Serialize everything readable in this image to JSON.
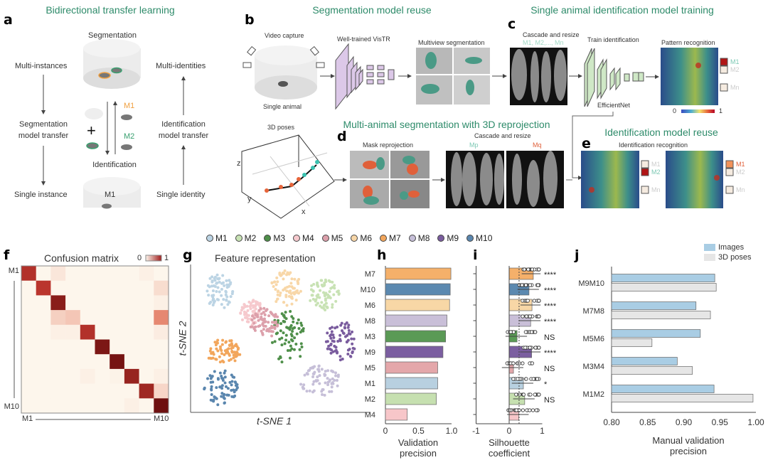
{
  "panel_a": {
    "letter": "a",
    "title": "Bidirectional transfer learning",
    "segmentation": "Segmentation",
    "multi_instances": "Multi-instances",
    "multi_identities": "Multi-identities",
    "seg_transfer_1": "Segmentation",
    "seg_transfer_2": "model transfer",
    "id_transfer_1": "Identification",
    "id_transfer_2": "model transfer",
    "m1": "M1",
    "m2": "M2",
    "plus": "+",
    "identification": "Identification",
    "single_instance": "Single instance",
    "single_identity": "Single identity",
    "m1_bottom": "M1"
  },
  "panel_b": {
    "letter": "b",
    "title": "Segmentation model reuse",
    "video_capture": "Video capture",
    "single_animal": "Single animal",
    "vistr": "Well-trained VisTR",
    "multiview": "Multiview segmentation",
    "poses": "3D poses",
    "axis_x": "x",
    "axis_y": "y",
    "axis_z": "z"
  },
  "panel_c": {
    "letter": "c",
    "title": "Single animal identification model training",
    "cascade": "Cascade and resize",
    "ids": "M1, M2,..., Mn",
    "train": "Train identification",
    "efficientnet": "EfficientNet",
    "pattern": "Pattern recognition",
    "labels": [
      "M1",
      "M2",
      "Mn"
    ],
    "scale_min": "0",
    "scale_max": "1"
  },
  "panel_d": {
    "letter": "d",
    "title": "Multi-animal segmentation with 3D reprojection",
    "mask": "Mask reprojection",
    "cascade": "Cascade and resize",
    "mp": "Mp",
    "mq": "Mq"
  },
  "panel_e": {
    "letter": "e",
    "title": "Identification model reuse",
    "recognition": "Identification recognition",
    "left_labels": [
      "M1",
      "M2",
      "Mn"
    ],
    "right_labels": [
      "M1",
      "M2",
      "Mn"
    ]
  },
  "legend": [
    {
      "label": "M1",
      "color": "#bcd4e4"
    },
    {
      "label": "M2",
      "color": "#c8e2b4"
    },
    {
      "label": "M3",
      "color": "#4f8f4a"
    },
    {
      "label": "M4",
      "color": "#f6c9cd"
    },
    {
      "label": "M5",
      "color": "#dca0ab"
    },
    {
      "label": "M6",
      "color": "#f8d7a8"
    },
    {
      "label": "M7",
      "color": "#f2a65c"
    },
    {
      "label": "M8",
      "color": "#c6bfd8"
    },
    {
      "label": "M9",
      "color": "#7a5c9e"
    },
    {
      "label": "M10",
      "color": "#5a86ae"
    }
  ],
  "panel_g": {
    "letter": "g",
    "title": "Feature representation",
    "xlabel": "t-SNE 1",
    "ylabel": "t-SNE 2"
  },
  "chart_data": [
    {
      "id": "f",
      "type": "heatmap",
      "title": "Confusion matrix",
      "scale_min": "0",
      "scale_max": "1",
      "row_label_first": "M1",
      "row_label_last": "M10",
      "col_label_first": "M1",
      "col_label_last": "M10",
      "matrix": [
        [
          0.75,
          0,
          0.05,
          0,
          0,
          0,
          0,
          0,
          0.02,
          0
        ],
        [
          0,
          0.72,
          0,
          0,
          0,
          0,
          0,
          0,
          0,
          0.08
        ],
        [
          0,
          0,
          0.9,
          0,
          0,
          0,
          0,
          0,
          0,
          0.02
        ],
        [
          0,
          0,
          0.12,
          0.15,
          0,
          0,
          0,
          0,
          0,
          0.35
        ],
        [
          0,
          0,
          0.02,
          0.02,
          0.75,
          0,
          0,
          0,
          0,
          0.03
        ],
        [
          0,
          0,
          0,
          0,
          0,
          0.95,
          0,
          0,
          0,
          0
        ],
        [
          0,
          0,
          0,
          0,
          0,
          0,
          0.97,
          0,
          0,
          0
        ],
        [
          0,
          0,
          0,
          0,
          0.02,
          0,
          0.01,
          0.85,
          0,
          0.02
        ],
        [
          0,
          0,
          0,
          0,
          0,
          0,
          0,
          0,
          0.82,
          0.1
        ],
        [
          0,
          0,
          0,
          0,
          0,
          0,
          0,
          0.02,
          0,
          1.0
        ]
      ]
    },
    {
      "id": "h",
      "type": "bar",
      "xlabel_1": "Validation",
      "xlabel_2": "precision",
      "xlim": [
        0,
        1
      ],
      "xticks": [
        "0",
        "0.5",
        "1.0"
      ],
      "categories": [
        "M7",
        "M10",
        "M6",
        "M8",
        "M3",
        "M9",
        "M5",
        "M1",
        "M2",
        "M4"
      ],
      "values": [
        0.99,
        0.98,
        0.97,
        0.93,
        0.91,
        0.87,
        0.79,
        0.79,
        0.77,
        0.33
      ],
      "colors": [
        "#f5b06a",
        "#5b89b0",
        "#f8d7a6",
        "#c9bfd8",
        "#5a9a55",
        "#7b5ea0",
        "#e4a7aa",
        "#b8d0e0",
        "#c6e0b0",
        "#f7c6c9"
      ]
    },
    {
      "id": "i",
      "type": "bar",
      "xlabel_1": "Silhouette",
      "xlabel_2": "coefficient",
      "xlim": [
        -1,
        1
      ],
      "xticks": [
        "-1",
        "0",
        "1"
      ],
      "reference_line": 0.3,
      "categories": [
        "M7",
        "M10",
        "M6",
        "M8",
        "M3",
        "M9",
        "M5",
        "M1",
        "M2",
        "M4"
      ],
      "values": [
        0.73,
        0.6,
        0.69,
        0.65,
        0.24,
        0.68,
        0.13,
        0.43,
        0.47,
        0.29
      ],
      "significance": [
        "****",
        "****",
        "****",
        "****",
        "NS",
        "****",
        "NS",
        "*",
        "NS",
        ""
      ]
    },
    {
      "id": "j",
      "type": "bar",
      "xlabel_1": "Manual validation",
      "xlabel_2": "precision",
      "xlim": [
        0.8,
        1.0
      ],
      "xticks": [
        "0.80",
        "0.85",
        "0.90",
        "0.95",
        "1.00"
      ],
      "categories": [
        "M9M10",
        "M7M8",
        "M5M6",
        "M3M4",
        "M1M2"
      ],
      "series": [
        {
          "name": "Images",
          "color": "#a9cde4",
          "values": [
            0.943,
            0.917,
            0.923,
            0.891,
            0.942
          ]
        },
        {
          "name": "3D poses",
          "color": "#e6e6e6",
          "values": [
            0.945,
            0.937,
            0.856,
            0.912,
            0.996
          ]
        }
      ]
    }
  ]
}
